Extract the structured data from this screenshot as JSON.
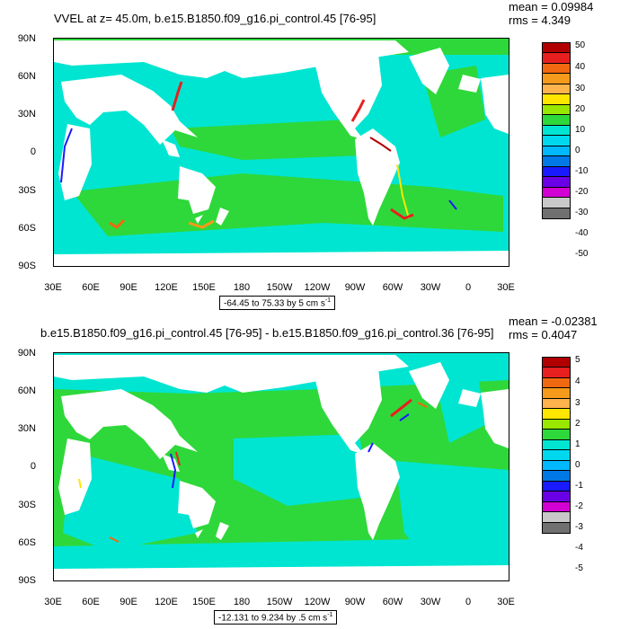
{
  "lat_labels": [
    "90N",
    "60N",
    "30N",
    "0",
    "30S",
    "60S",
    "90S"
  ],
  "lon_labels": [
    "30E",
    "60E",
    "90E",
    "120E",
    "150E",
    "180",
    "150W",
    "120W",
    "90W",
    "60W",
    "30W",
    "0",
    "30E"
  ],
  "ocean_colors": {
    "base": "#00e5d1",
    "green": "#2ed83a",
    "land": "#ffffff"
  },
  "panels": [
    {
      "title": "VVEL at z=  45.0m, b.e15.B1850.f09_g16.pi_control.45 [76-95]",
      "mean": "mean = 0.09984",
      "rms": "rms = 4.349",
      "range_text": "-64.45 to 75.33 by 5 cm s",
      "range_unit_exp": "-1",
      "colorbar_labels": [
        "50",
        "40",
        "30",
        "20",
        "10",
        "0",
        "-10",
        "-20",
        "-30",
        "-40",
        "-50"
      ]
    },
    {
      "title": "b.e15.B1850.f09_g16.pi_control.45 [76-95] - b.e15.B1850.f09_g16.pi_control.36 [76-95]",
      "mean": "mean = -0.02381",
      "rms": "rms = 0.4047",
      "range_text": "-12.131 to 9.234 by .5 cm s",
      "range_unit_exp": "-1",
      "colorbar_labels": [
        "5",
        "4",
        "3",
        "2",
        "1",
        "0",
        "-1",
        "-2",
        "-3",
        "-4",
        "-5"
      ]
    }
  ],
  "colorbar_colors": [
    "#b20000",
    "#e81f1f",
    "#f0680f",
    "#f59a1a",
    "#ffb34d",
    "#ffe600",
    "#99e600",
    "#2ed83a",
    "#00e5d1",
    "#00d8f0",
    "#00b8ff",
    "#0078e6",
    "#1a1aff",
    "#6a00e6",
    "#d300d3",
    "#c8c8c8",
    "#707070"
  ]
}
